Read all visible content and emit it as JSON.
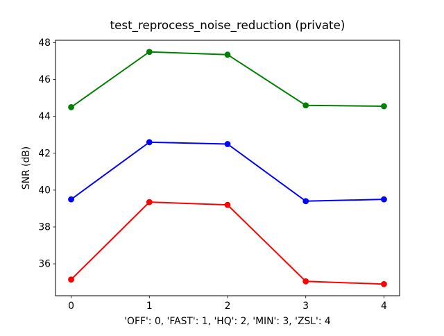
{
  "figure": {
    "background": "#ffffff",
    "text_color": "#000000"
  },
  "chart_data": {
    "type": "line",
    "title": "test_reprocess_noise_reduction (private)",
    "xlabel": "'OFF': 0, 'FAST': 1, 'HQ': 2, 'MIN': 3, 'ZSL': 4",
    "ylabel": "SNR (dB)",
    "x": [
      0,
      1,
      2,
      3,
      4
    ],
    "xticks": [
      0,
      1,
      2,
      3,
      4
    ],
    "yticks": [
      36,
      38,
      40,
      42,
      44,
      46,
      48
    ],
    "xlim": [
      -0.2,
      4.2
    ],
    "ylim": [
      34.27,
      48.13
    ],
    "grid": false,
    "legend": "none",
    "x_mode_mapping": {
      "OFF": 0,
      "FAST": 1,
      "HQ": 2,
      "MIN": 3,
      "ZSL": 4
    },
    "series": [
      {
        "name": "green-line",
        "color": "#008000",
        "marker": "circle",
        "values": [
          44.5,
          47.5,
          47.35,
          44.6,
          44.55
        ]
      },
      {
        "name": "blue-line",
        "color": "#0000ff",
        "marker": "circle",
        "values": [
          39.5,
          42.6,
          42.5,
          39.4,
          39.5
        ]
      },
      {
        "name": "red-line",
        "color": "#ff0000",
        "marker": "circle",
        "values": [
          35.15,
          39.35,
          39.2,
          35.05,
          34.9
        ]
      }
    ]
  }
}
